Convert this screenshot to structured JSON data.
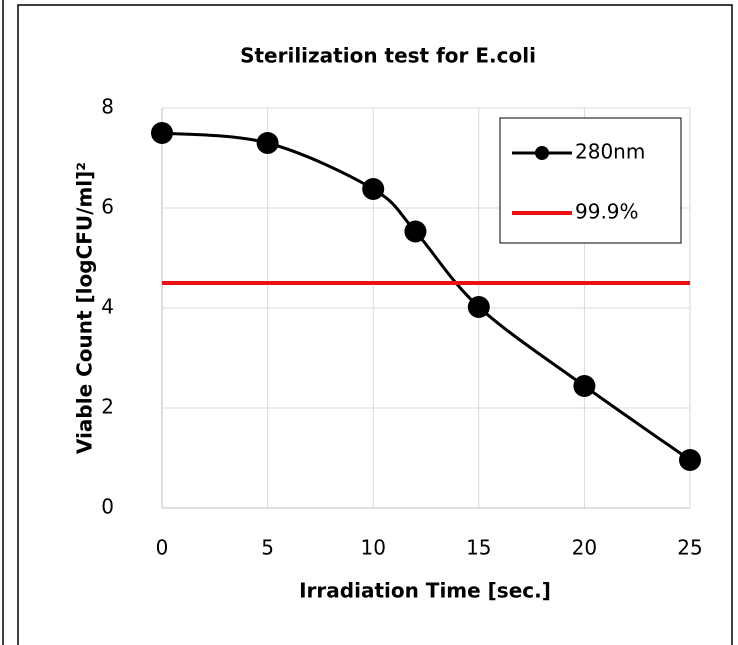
{
  "chart_data": {
    "type": "line",
    "title": "Sterilization test for E.coli",
    "x_label": "Irradiation Time [sec.]",
    "y_label": "Viable Count [logCFU/ml]²",
    "xlim": [
      0,
      25
    ],
    "xticks": [
      0,
      5,
      10,
      15,
      20,
      25
    ],
    "ylim": [
      0,
      8
    ],
    "yticks": [
      0,
      2,
      4,
      6,
      8
    ],
    "grid": true,
    "legend": "upper right",
    "series": [
      {
        "name": "280nm",
        "color": "#000000",
        "markers": true,
        "smooth": true,
        "x": [
          0,
          5,
          10,
          12,
          15,
          20,
          25
        ],
        "values": [
          7.5,
          7.3,
          6.38,
          5.53,
          4.02,
          2.44,
          0.96
        ]
      },
      {
        "name": "99.9%",
        "color": "#ee1111",
        "markers": false,
        "smooth": false,
        "x": [
          0,
          25
        ],
        "values": [
          4.5,
          4.5
        ]
      }
    ]
  }
}
